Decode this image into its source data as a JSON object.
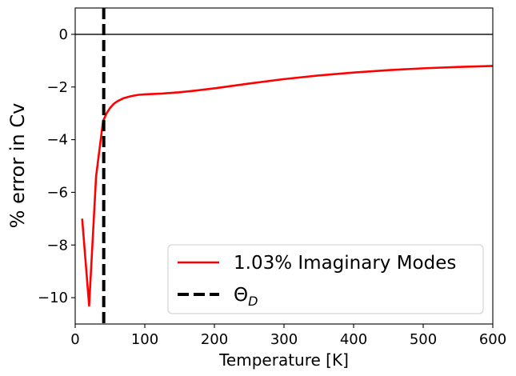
{
  "chart_data": {
    "type": "line",
    "title": "",
    "xlabel": "Temperature [K]",
    "ylabel": "% error in Cv",
    "xlim": [
      0,
      600
    ],
    "ylim": [
      -11,
      1
    ],
    "xticks": [
      0,
      100,
      200,
      300,
      400,
      500,
      600
    ],
    "yticks": [
      0,
      -2,
      -4,
      -6,
      -8,
      -10
    ],
    "xtick_labels": [
      "0",
      "100",
      "200",
      "300",
      "400",
      "500",
      "600"
    ],
    "ytick_labels": [
      "0",
      "−2",
      "−4",
      "−6",
      "−8",
      "−10"
    ],
    "grid": false,
    "legend_position": "lower-right",
    "series": [
      {
        "name": "1.03% Imaginary Modes",
        "color": "#ff0000",
        "style": "solid",
        "x": [
          10,
          20,
          30,
          40,
          45,
          50,
          55,
          60,
          70,
          80,
          90,
          100,
          125,
          150,
          175,
          200,
          250,
          300,
          350,
          400,
          450,
          500,
          550,
          600
        ],
        "y": [
          -7.0,
          -10.3,
          -5.4,
          -3.3,
          -3.0,
          -2.8,
          -2.65,
          -2.55,
          -2.42,
          -2.35,
          -2.3,
          -2.28,
          -2.25,
          -2.2,
          -2.13,
          -2.05,
          -1.87,
          -1.7,
          -1.56,
          -1.45,
          -1.36,
          -1.29,
          -1.24,
          -1.2
        ]
      },
      {
        "name": "Θ_D",
        "color": "#000000",
        "style": "dashed",
        "vertical_x": 41
      }
    ],
    "reference_line": {
      "y": 0,
      "color": "#000000"
    },
    "legend": [
      {
        "label_main": "1.03% Imaginary Modes",
        "label_sub": ""
      },
      {
        "label_main": "Θ",
        "label_sub": "D"
      }
    ]
  }
}
